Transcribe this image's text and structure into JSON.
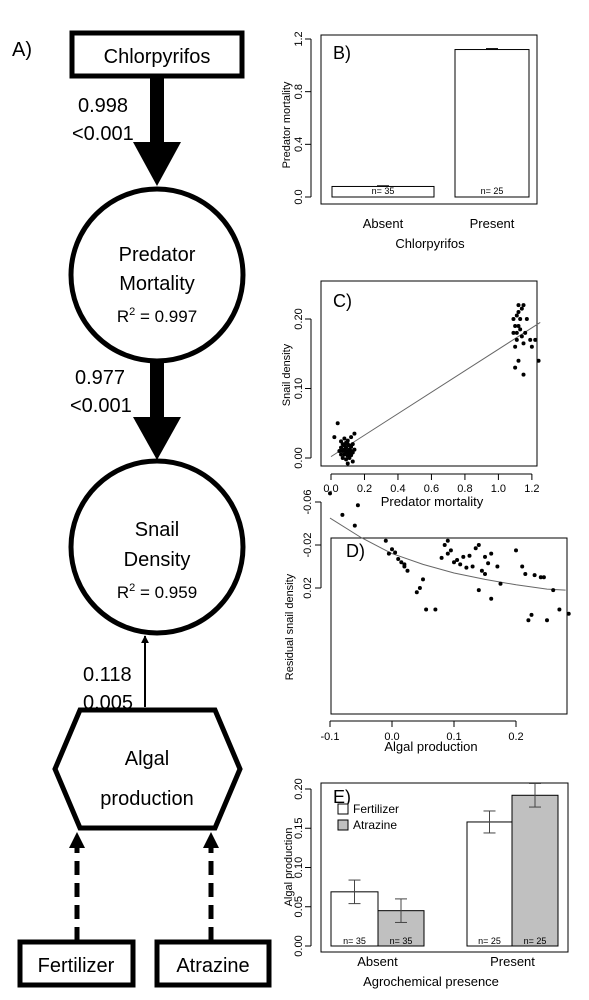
{
  "panel_a": {
    "label": "A)",
    "nodes": {
      "chlorpyrifos": "Chlorpyrifos",
      "predator": {
        "line1": "Predator",
        "line2": "Mortality",
        "r2_prefix": "R",
        "r2_value": " = 0.997"
      },
      "snail": {
        "line1": "Snail",
        "line2": "Density",
        "r2_prefix": "R",
        "r2_value": " = 0.959"
      },
      "algal": {
        "line1": "Algal",
        "line2": "production"
      },
      "fertilizer": "Fertilizer",
      "atrazine": "Atrazine"
    },
    "paths": [
      {
        "coef": "0.998",
        "p": "<0.001"
      },
      {
        "coef": "0.977",
        "p": "<0.001"
      },
      {
        "coef": "0.118",
        "p": "0.005"
      }
    ]
  },
  "chart_data": [
    {
      "panel": "B)",
      "type": "bar",
      "categories": [
        "Absent",
        "Present"
      ],
      "values": [
        0.08,
        1.12
      ],
      "error": [
        0.005,
        0.007
      ],
      "n_labels": [
        "n= 35",
        "n= 25"
      ],
      "xlabel": "Chlorpyrifos",
      "ylabel": "Predator mortality",
      "yticks": [
        "0.0",
        "0.4",
        "0.8",
        "1.2"
      ],
      "ylim": [
        0,
        1.22
      ]
    },
    {
      "panel": "C)",
      "type": "scatter",
      "xlabel": "Predator mortality",
      "ylabel": "Snail density",
      "xticks": [
        "0.0",
        "0.2",
        "0.4",
        "0.6",
        "0.8",
        "1.0",
        "1.2"
      ],
      "yticks": [
        "0.00",
        "0.10",
        "0.20"
      ],
      "xlim": [
        -0.02,
        1.26
      ],
      "ylim": [
        -0.012,
        0.228
      ],
      "fit_line": [
        [
          0.0,
          0.002
        ],
        [
          1.25,
          0.195
        ]
      ],
      "points": [
        [
          0.02,
          0.03
        ],
        [
          0.04,
          0.05
        ],
        [
          0.05,
          0.01
        ],
        [
          0.06,
          0.005
        ],
        [
          0.06,
          0.015
        ],
        [
          0.07,
          0.0
        ],
        [
          0.07,
          0.01
        ],
        [
          0.07,
          0.02
        ],
        [
          0.08,
          0.005
        ],
        [
          0.08,
          0.012
        ],
        [
          0.08,
          0.018
        ],
        [
          0.09,
          -0.002
        ],
        [
          0.09,
          0.008
        ],
        [
          0.09,
          0.015
        ],
        [
          0.09,
          0.022
        ],
        [
          0.1,
          0.003
        ],
        [
          0.1,
          0.01
        ],
        [
          0.1,
          0.02
        ],
        [
          0.1,
          0.025
        ],
        [
          0.11,
          0.0
        ],
        [
          0.11,
          0.006
        ],
        [
          0.11,
          0.012
        ],
        [
          0.11,
          0.018
        ],
        [
          0.12,
          0.004
        ],
        [
          0.12,
          0.01
        ],
        [
          0.12,
          0.016
        ],
        [
          0.12,
          0.03
        ],
        [
          0.13,
          0.008
        ],
        [
          0.13,
          0.02
        ],
        [
          0.13,
          -0.005
        ],
        [
          0.14,
          0.012
        ],
        [
          0.14,
          0.035
        ],
        [
          0.08,
          0.028
        ],
        [
          0.1,
          -0.008
        ],
        [
          0.06,
          0.024
        ],
        [
          1.09,
          0.18
        ],
        [
          1.09,
          0.2
        ],
        [
          1.1,
          0.13
        ],
        [
          1.1,
          0.16
        ],
        [
          1.1,
          0.19
        ],
        [
          1.11,
          0.17
        ],
        [
          1.11,
          0.205
        ],
        [
          1.11,
          0.18
        ],
        [
          1.12,
          0.19
        ],
        [
          1.12,
          0.21
        ],
        [
          1.12,
          0.22
        ],
        [
          1.12,
          0.14
        ],
        [
          1.13,
          0.185
        ],
        [
          1.13,
          0.2
        ],
        [
          1.14,
          0.175
        ],
        [
          1.14,
          0.215
        ],
        [
          1.15,
          0.165
        ],
        [
          1.15,
          0.22
        ],
        [
          1.15,
          0.12
        ],
        [
          1.16,
          0.18
        ],
        [
          1.17,
          0.2
        ],
        [
          1.19,
          0.17
        ],
        [
          1.2,
          0.16
        ],
        [
          1.22,
          0.17
        ],
        [
          1.24,
          0.14
        ]
      ]
    },
    {
      "panel": "D)",
      "type": "scatter",
      "xlabel": "Algal production",
      "ylabel": "Residual snail density",
      "xticks": [
        "-0.1",
        "0.0",
        "0.1",
        "0.2"
      ],
      "yticks": [
        "-0.06",
        "-0.02",
        "0.02"
      ],
      "xlim": [
        -0.11,
        0.3
      ],
      "ylim": [
        -0.073,
        0.057
      ],
      "fit_curve": [
        [
          -0.1,
          -0.045
        ],
        [
          -0.05,
          -0.027
        ],
        [
          0.0,
          -0.012
        ],
        [
          0.05,
          -0.002
        ],
        [
          0.1,
          0.006
        ],
        [
          0.15,
          0.012
        ],
        [
          0.2,
          0.017
        ],
        [
          0.25,
          0.021
        ],
        [
          0.28,
          0.022
        ]
      ],
      "points": [
        [
          -0.1,
          -0.068
        ],
        [
          -0.08,
          -0.048
        ],
        [
          -0.06,
          -0.038
        ],
        [
          -0.055,
          -0.057
        ],
        [
          -0.01,
          -0.024
        ],
        [
          -0.005,
          -0.012
        ],
        [
          0.0,
          -0.016
        ],
        [
          0.005,
          -0.013
        ],
        [
          0.01,
          -0.007
        ],
        [
          0.015,
          -0.004
        ],
        [
          0.02,
          -0.002
        ],
        [
          0.02,
          0.0
        ],
        [
          0.025,
          0.004
        ],
        [
          0.04,
          0.024
        ],
        [
          0.045,
          0.02
        ],
        [
          0.05,
          0.012
        ],
        [
          0.055,
          0.04
        ],
        [
          0.07,
          0.04
        ],
        [
          0.08,
          -0.008
        ],
        [
          0.085,
          -0.02
        ],
        [
          0.09,
          -0.024
        ],
        [
          0.09,
          -0.012
        ],
        [
          0.095,
          -0.015
        ],
        [
          0.1,
          -0.004
        ],
        [
          0.105,
          -0.006
        ],
        [
          0.11,
          -0.002
        ],
        [
          0.115,
          -0.009
        ],
        [
          0.12,
          0.001
        ],
        [
          0.125,
          -0.01
        ],
        [
          0.13,
          0.0
        ],
        [
          0.135,
          -0.017
        ],
        [
          0.14,
          0.022
        ],
        [
          0.14,
          -0.02
        ],
        [
          0.145,
          0.004
        ],
        [
          0.15,
          -0.009
        ],
        [
          0.15,
          0.007
        ],
        [
          0.155,
          -0.003
        ],
        [
          0.16,
          0.03
        ],
        [
          0.16,
          -0.012
        ],
        [
          0.17,
          0.0
        ],
        [
          0.175,
          0.016
        ],
        [
          0.2,
          -0.015
        ],
        [
          0.21,
          0.0
        ],
        [
          0.215,
          0.007
        ],
        [
          0.22,
          0.05
        ],
        [
          0.225,
          0.045
        ],
        [
          0.23,
          0.008
        ],
        [
          0.24,
          0.01
        ],
        [
          0.245,
          0.01
        ],
        [
          0.25,
          0.05
        ],
        [
          0.26,
          0.022
        ],
        [
          0.27,
          0.04
        ],
        [
          0.285,
          0.044
        ]
      ]
    },
    {
      "panel": "E)",
      "type": "bar",
      "categories": [
        "Absent",
        "Present"
      ],
      "series": [
        {
          "name": "Fertilizer",
          "color": "#ffffff",
          "values": [
            0.069,
            0.158
          ],
          "error": [
            0.015,
            0.014
          ],
          "n_labels": [
            "n= 35",
            "n= 25"
          ]
        },
        {
          "name": "Atrazine",
          "color": "#c0c0c0",
          "values": [
            0.045,
            0.192
          ],
          "error": [
            0.015,
            0.015
          ],
          "n_labels": [
            "n= 35",
            "n= 25"
          ]
        }
      ],
      "xlabel": "Agrochemical presence",
      "ylabel": "Algal production",
      "yticks": [
        "0.00",
        "0.05",
        "0.10",
        "0.15",
        "0.20"
      ],
      "ylim": [
        0,
        0.212
      ],
      "legend": "top-left"
    }
  ]
}
